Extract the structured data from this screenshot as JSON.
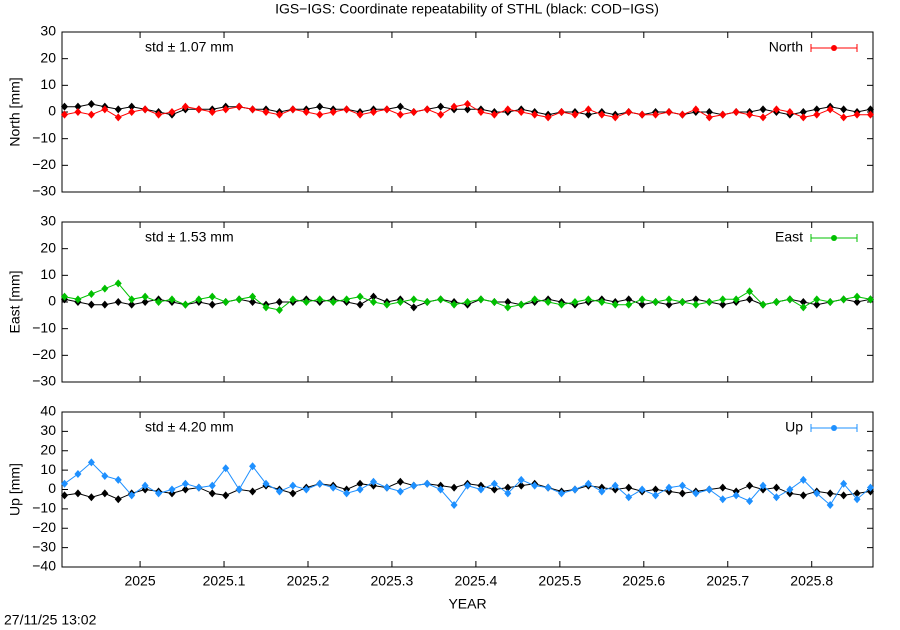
{
  "title": "IGS−IGS: Coordinate repeatability of STHL (black: COD−IGS)",
  "timestamp": "27/11/25 13:02",
  "chart_data": [
    {
      "type": "line",
      "ylabel": "North [mm]",
      "annotation": "std ± 1.07 mm",
      "legend": "top-right",
      "xlim": [
        2024.907,
        2025.873
      ],
      "xticks": [
        2025,
        2025.1,
        2025.2,
        2025.3,
        2025.4,
        2025.5,
        2025.6,
        2025.7,
        2025.8
      ],
      "ylim": [
        -30,
        30
      ],
      "yticks": [
        {
          "value": -30,
          "label": "−30"
        },
        {
          "value": -20,
          "label": "−20"
        },
        {
          "value": -10,
          "label": "−10"
        },
        0,
        10,
        20,
        30
      ],
      "x": [
        2024.91,
        2024.926,
        2024.942,
        2024.958,
        2024.974,
        2024.99,
        2025.006,
        2025.022,
        2025.038,
        2025.054,
        2025.07,
        2025.086,
        2025.102,
        2025.118,
        2025.134,
        2025.15,
        2025.166,
        2025.182,
        2025.198,
        2025.214,
        2025.23,
        2025.246,
        2025.262,
        2025.278,
        2025.294,
        2025.31,
        2025.326,
        2025.342,
        2025.358,
        2025.374,
        2025.39,
        2025.406,
        2025.422,
        2025.438,
        2025.454,
        2025.47,
        2025.486,
        2025.502,
        2025.518,
        2025.534,
        2025.55,
        2025.566,
        2025.582,
        2025.598,
        2025.614,
        2025.63,
        2025.646,
        2025.662,
        2025.678,
        2025.694,
        2025.71,
        2025.726,
        2025.742,
        2025.758,
        2025.774,
        2025.79,
        2025.806,
        2025.822,
        2025.838,
        2025.854,
        2025.87
      ],
      "series": [
        {
          "color": "#000000",
          "values": [
            2,
            2,
            3,
            2,
            1,
            2,
            1,
            0,
            -1,
            1,
            1,
            1,
            2,
            2,
            1,
            1,
            0,
            1,
            1,
            2,
            1,
            1,
            0,
            1,
            1,
            2,
            0,
            1,
            2,
            1,
            1,
            1,
            0,
            0,
            1,
            0,
            -1,
            0,
            0,
            -1,
            0,
            -1,
            0,
            -1,
            0,
            0,
            -1,
            0,
            0,
            -1,
            0,
            0,
            1,
            0,
            -1,
            0,
            1,
            2,
            1,
            0,
            1
          ]
        },
        {
          "name": "North",
          "color": "#ff0000",
          "values": [
            -1,
            0,
            -1,
            1,
            -2,
            0,
            1,
            -1,
            0,
            2,
            1,
            0,
            1,
            2,
            1,
            0,
            -1,
            1,
            0,
            -1,
            0,
            1,
            -1,
            0,
            1,
            -1,
            0,
            1,
            -1,
            2,
            3,
            0,
            -1,
            1,
            0,
            -1,
            -2,
            0,
            -1,
            1,
            -1,
            -2,
            0,
            -1,
            -1,
            0,
            -1,
            1,
            -2,
            -1,
            0,
            -1,
            -2,
            1,
            0,
            -2,
            -1,
            1,
            -2,
            -1,
            -1
          ]
        }
      ]
    },
    {
      "type": "line",
      "ylabel": "East [mm]",
      "annotation": "std ± 1.53 mm",
      "legend": "top-right",
      "xlim": [
        2024.907,
        2025.873
      ],
      "xticks": [
        2025,
        2025.1,
        2025.2,
        2025.3,
        2025.4,
        2025.5,
        2025.6,
        2025.7,
        2025.8
      ],
      "ylim": [
        -30,
        30
      ],
      "yticks": [
        {
          "value": -30,
          "label": "−30"
        },
        {
          "value": -20,
          "label": "−20"
        },
        {
          "value": -10,
          "label": "−10"
        },
        0,
        10,
        20,
        30
      ],
      "x": [
        2024.91,
        2024.926,
        2024.942,
        2024.958,
        2024.974,
        2024.99,
        2025.006,
        2025.022,
        2025.038,
        2025.054,
        2025.07,
        2025.086,
        2025.102,
        2025.118,
        2025.134,
        2025.15,
        2025.166,
        2025.182,
        2025.198,
        2025.214,
        2025.23,
        2025.246,
        2025.262,
        2025.278,
        2025.294,
        2025.31,
        2025.326,
        2025.342,
        2025.358,
        2025.374,
        2025.39,
        2025.406,
        2025.422,
        2025.438,
        2025.454,
        2025.47,
        2025.486,
        2025.502,
        2025.518,
        2025.534,
        2025.55,
        2025.566,
        2025.582,
        2025.598,
        2025.614,
        2025.63,
        2025.646,
        2025.662,
        2025.678,
        2025.694,
        2025.71,
        2025.726,
        2025.742,
        2025.758,
        2025.774,
        2025.79,
        2025.806,
        2025.822,
        2025.838,
        2025.854,
        2025.87
      ],
      "series": [
        {
          "color": "#000000",
          "values": [
            1,
            0,
            -1,
            -1,
            0,
            -1,
            0,
            1,
            0,
            -1,
            0,
            -1,
            0,
            1,
            0,
            -1,
            0,
            0,
            1,
            0,
            1,
            0,
            -1,
            2,
            0,
            1,
            -2,
            0,
            1,
            0,
            -1,
            1,
            0,
            0,
            -1,
            0,
            1,
            0,
            -1,
            0,
            1,
            0,
            1,
            -1,
            0,
            -1,
            0,
            1,
            0,
            -1,
            0,
            1,
            -1,
            0,
            1,
            0,
            -1,
            0,
            1,
            0,
            1
          ]
        },
        {
          "name": "East",
          "color": "#00c000",
          "values": [
            2,
            1,
            3,
            5,
            7,
            1,
            2,
            0,
            1,
            -1,
            1,
            2,
            0,
            1,
            2,
            -2,
            -3,
            1,
            0,
            1,
            0,
            1,
            2,
            0,
            -1,
            0,
            1,
            0,
            1,
            -1,
            0,
            1,
            0,
            -2,
            -1,
            1,
            0,
            -1,
            0,
            1,
            0,
            -1,
            -1,
            1,
            0,
            1,
            0,
            -1,
            0,
            1,
            1,
            4,
            -1,
            0,
            1,
            -2,
            1,
            0,
            1,
            2,
            1
          ]
        }
      ]
    },
    {
      "type": "line",
      "ylabel": "Up [mm]",
      "xlabel": "YEAR",
      "annotation": "std ± 4.20 mm",
      "legend": "top-right",
      "xlim": [
        2024.907,
        2025.873
      ],
      "xticks": [
        2025,
        2025.1,
        2025.2,
        2025.3,
        2025.4,
        2025.5,
        2025.6,
        2025.7,
        2025.8
      ],
      "ylim": [
        -40,
        40
      ],
      "yticks": [
        {
          "value": -40,
          "label": "−40"
        },
        {
          "value": -30,
          "label": "−30"
        },
        {
          "value": -20,
          "label": "−20"
        },
        {
          "value": -10,
          "label": "−10"
        },
        0,
        10,
        20,
        30,
        40
      ],
      "x": [
        2024.91,
        2024.926,
        2024.942,
        2024.958,
        2024.974,
        2024.99,
        2025.006,
        2025.022,
        2025.038,
        2025.054,
        2025.07,
        2025.086,
        2025.102,
        2025.118,
        2025.134,
        2025.15,
        2025.166,
        2025.182,
        2025.198,
        2025.214,
        2025.23,
        2025.246,
        2025.262,
        2025.278,
        2025.294,
        2025.31,
        2025.326,
        2025.342,
        2025.358,
        2025.374,
        2025.39,
        2025.406,
        2025.422,
        2025.438,
        2025.454,
        2025.47,
        2025.486,
        2025.502,
        2025.518,
        2025.534,
        2025.55,
        2025.566,
        2025.582,
        2025.598,
        2025.614,
        2025.63,
        2025.646,
        2025.662,
        2025.678,
        2025.694,
        2025.71,
        2025.726,
        2025.742,
        2025.758,
        2025.774,
        2025.79,
        2025.806,
        2025.822,
        2025.838,
        2025.854,
        2025.87
      ],
      "series": [
        {
          "color": "#000000",
          "values": [
            -3,
            -2,
            -4,
            -2,
            -5,
            -2,
            0,
            -1,
            -2,
            0,
            1,
            -2,
            -3,
            0,
            -1,
            2,
            0,
            -2,
            1,
            3,
            2,
            0,
            3,
            2,
            1,
            4,
            2,
            3,
            2,
            1,
            3,
            2,
            0,
            1,
            2,
            3,
            1,
            -1,
            0,
            2,
            1,
            0,
            1,
            -1,
            0,
            -1,
            -2,
            -1,
            0,
            1,
            -1,
            2,
            0,
            1,
            -2,
            -3,
            -1,
            -2,
            -3,
            -2,
            -1
          ]
        },
        {
          "name": "Up",
          "color": "#1e90ff",
          "values": [
            3,
            8,
            14,
            7,
            5,
            -3,
            2,
            -2,
            0,
            3,
            1,
            2,
            11,
            0,
            12,
            3,
            -1,
            2,
            0,
            3,
            1,
            -2,
            0,
            4,
            1,
            -1,
            2,
            3,
            0,
            -8,
            2,
            0,
            3,
            -2,
            5,
            2,
            1,
            -2,
            0,
            3,
            -1,
            2,
            -4,
            0,
            -3,
            1,
            2,
            -2,
            0,
            -5,
            -3,
            -6,
            2,
            -4,
            0,
            5,
            -2,
            -8,
            3,
            -5,
            1
          ]
        }
      ]
    }
  ]
}
